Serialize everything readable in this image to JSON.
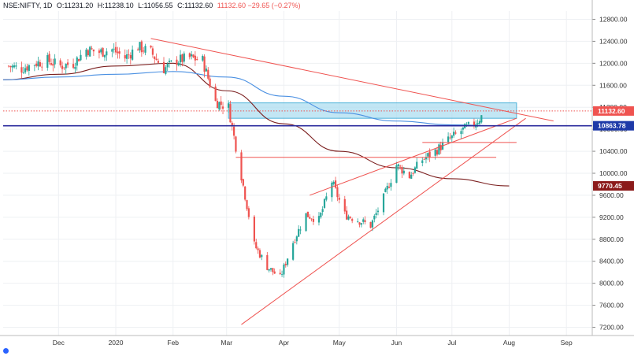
{
  "header": {
    "symbol": "NSE:NIFTY, 1D",
    "open": "O:11231.20",
    "high": "H:11238.10",
    "low": "L:11056.55",
    "close": "C:11132.60",
    "change": "11132.60 −29.65 (−0.27%)"
  },
  "footer": {
    "label": ""
  },
  "colors": {
    "up": "#26a69a",
    "down": "#ef5350",
    "trendline": "#ef5350",
    "ma_slow": "#7b1f1f",
    "ma_fast": "#4a90e2",
    "zone_fill": "#a8dcef",
    "support": "#2a2a9c",
    "price_tag": "#ef5350",
    "support_tag": "#1e3aa8",
    "ma_tag": "#8b1a1a"
  },
  "chart_data": {
    "type": "candlestick",
    "title": "",
    "xlabel": "",
    "ylabel": "",
    "ylim": [
      7050,
      12950
    ],
    "y_ticks": [
      "12800.00",
      "12400.00",
      "12000.00",
      "11600.00",
      "11200.00",
      "10800.00",
      "10400.00",
      "10000.00",
      "9600.00",
      "9200.00",
      "8800.00",
      "8400.00",
      "8000.00",
      "7600.00",
      "7200.00"
    ],
    "x_ticks": [
      "Dec",
      "2020",
      "Feb",
      "Mar",
      "Apr",
      "May",
      "Jun",
      "Jul",
      "Aug",
      "Sep"
    ],
    "price_tags": [
      {
        "label": "11132.60",
        "value": 11132.6,
        "kind": "price"
      },
      {
        "label": "10863.78",
        "value": 10863.78,
        "kind": "support"
      },
      {
        "label": "9770.45",
        "value": 9770.45,
        "kind": "ma"
      }
    ],
    "series": [
      {
        "name": "Nifty close (approx.)",
        "points": [
          [
            "2019-11-04",
            11950
          ],
          [
            "2019-11-11",
            11900
          ],
          [
            "2019-11-18",
            12000
          ],
          [
            "2019-11-25",
            12050
          ],
          [
            "2019-12-02",
            11950
          ],
          [
            "2019-12-09",
            12000
          ],
          [
            "2019-12-16",
            12250
          ],
          [
            "2019-12-23",
            12200
          ],
          [
            "2019-12-30",
            12250
          ],
          [
            "2020-01-06",
            12100
          ],
          [
            "2020-01-13",
            12300
          ],
          [
            "2020-01-20",
            12200
          ],
          [
            "2020-01-27",
            11900
          ],
          [
            "2020-02-03",
            12050
          ],
          [
            "2020-02-10",
            12100
          ],
          [
            "2020-02-17",
            12050
          ],
          [
            "2020-02-24",
            11300
          ],
          [
            "2020-03-02",
            11200
          ],
          [
            "2020-03-09",
            9950
          ],
          [
            "2020-03-16",
            8700
          ],
          [
            "2020-03-23",
            8300
          ],
          [
            "2020-03-30",
            8100
          ],
          [
            "2020-04-06",
            8750
          ],
          [
            "2020-04-13",
            9250
          ],
          [
            "2020-04-20",
            9150
          ],
          [
            "2020-04-27",
            9850
          ],
          [
            "2020-05-04",
            9250
          ],
          [
            "2020-05-11",
            9150
          ],
          [
            "2020-05-18",
            9050
          ],
          [
            "2020-05-25",
            9550
          ],
          [
            "2020-06-01",
            10150
          ],
          [
            "2020-06-08",
            9950
          ],
          [
            "2020-06-15",
            10250
          ],
          [
            "2020-06-22",
            10400
          ],
          [
            "2020-06-29",
            10600
          ],
          [
            "2020-07-06",
            10770
          ],
          [
            "2020-07-13",
            10900
          ],
          [
            "2020-07-20",
            11132
          ]
        ]
      },
      {
        "name": "Slow moving average (approx.)",
        "points": [
          [
            "2019-11-01",
            11700
          ],
          [
            "2019-12-01",
            11800
          ],
          [
            "2020-01-01",
            11950
          ],
          [
            "2020-02-01",
            12000
          ],
          [
            "2020-03-01",
            11500
          ],
          [
            "2020-04-01",
            10900
          ],
          [
            "2020-05-01",
            10400
          ],
          [
            "2020-06-01",
            10100
          ],
          [
            "2020-07-01",
            9900
          ],
          [
            "2020-08-01",
            9770
          ]
        ]
      },
      {
        "name": "Fast moving average (approx.)",
        "points": [
          [
            "2019-11-01",
            11700
          ],
          [
            "2019-12-01",
            11750
          ],
          [
            "2020-01-01",
            11800
          ],
          [
            "2020-02-01",
            11850
          ],
          [
            "2020-03-01",
            11750
          ],
          [
            "2020-04-01",
            11400
          ],
          [
            "2020-05-01",
            11100
          ],
          [
            "2020-06-01",
            10950
          ],
          [
            "2020-07-01",
            10880
          ],
          [
            "2020-07-31",
            10860
          ]
        ]
      }
    ],
    "annotations": [
      {
        "type": "trendline",
        "from": [
          "2020-01-20",
          12450
        ],
        "to": [
          "2020-08-25",
          10950
        ]
      },
      {
        "type": "trendline",
        "from": [
          "2020-03-09",
          7250
        ],
        "to": [
          "2020-08-10",
          11000
        ]
      },
      {
        "type": "trendline",
        "from": [
          "2020-04-15",
          9600
        ],
        "to": [
          "2020-08-05",
          11000
        ]
      },
      {
        "type": "zone",
        "x0": "2020-03-02",
        "x1": "2020-08-05",
        "y0": 11000,
        "y1": 11280
      },
      {
        "type": "hline",
        "x0": "2020-03-06",
        "x1": "2020-07-25",
        "y": 10290
      },
      {
        "type": "hline",
        "x0": "2020-06-15",
        "x1": "2020-08-05",
        "y": 10560
      },
      {
        "type": "hline",
        "x0": "2019-11-01",
        "x1": "2020-09-15",
        "y": 10864
      },
      {
        "type": "hline_dotted",
        "x0": "2019-11-01",
        "x1": "2020-09-15",
        "y": 11132.6
      }
    ]
  }
}
